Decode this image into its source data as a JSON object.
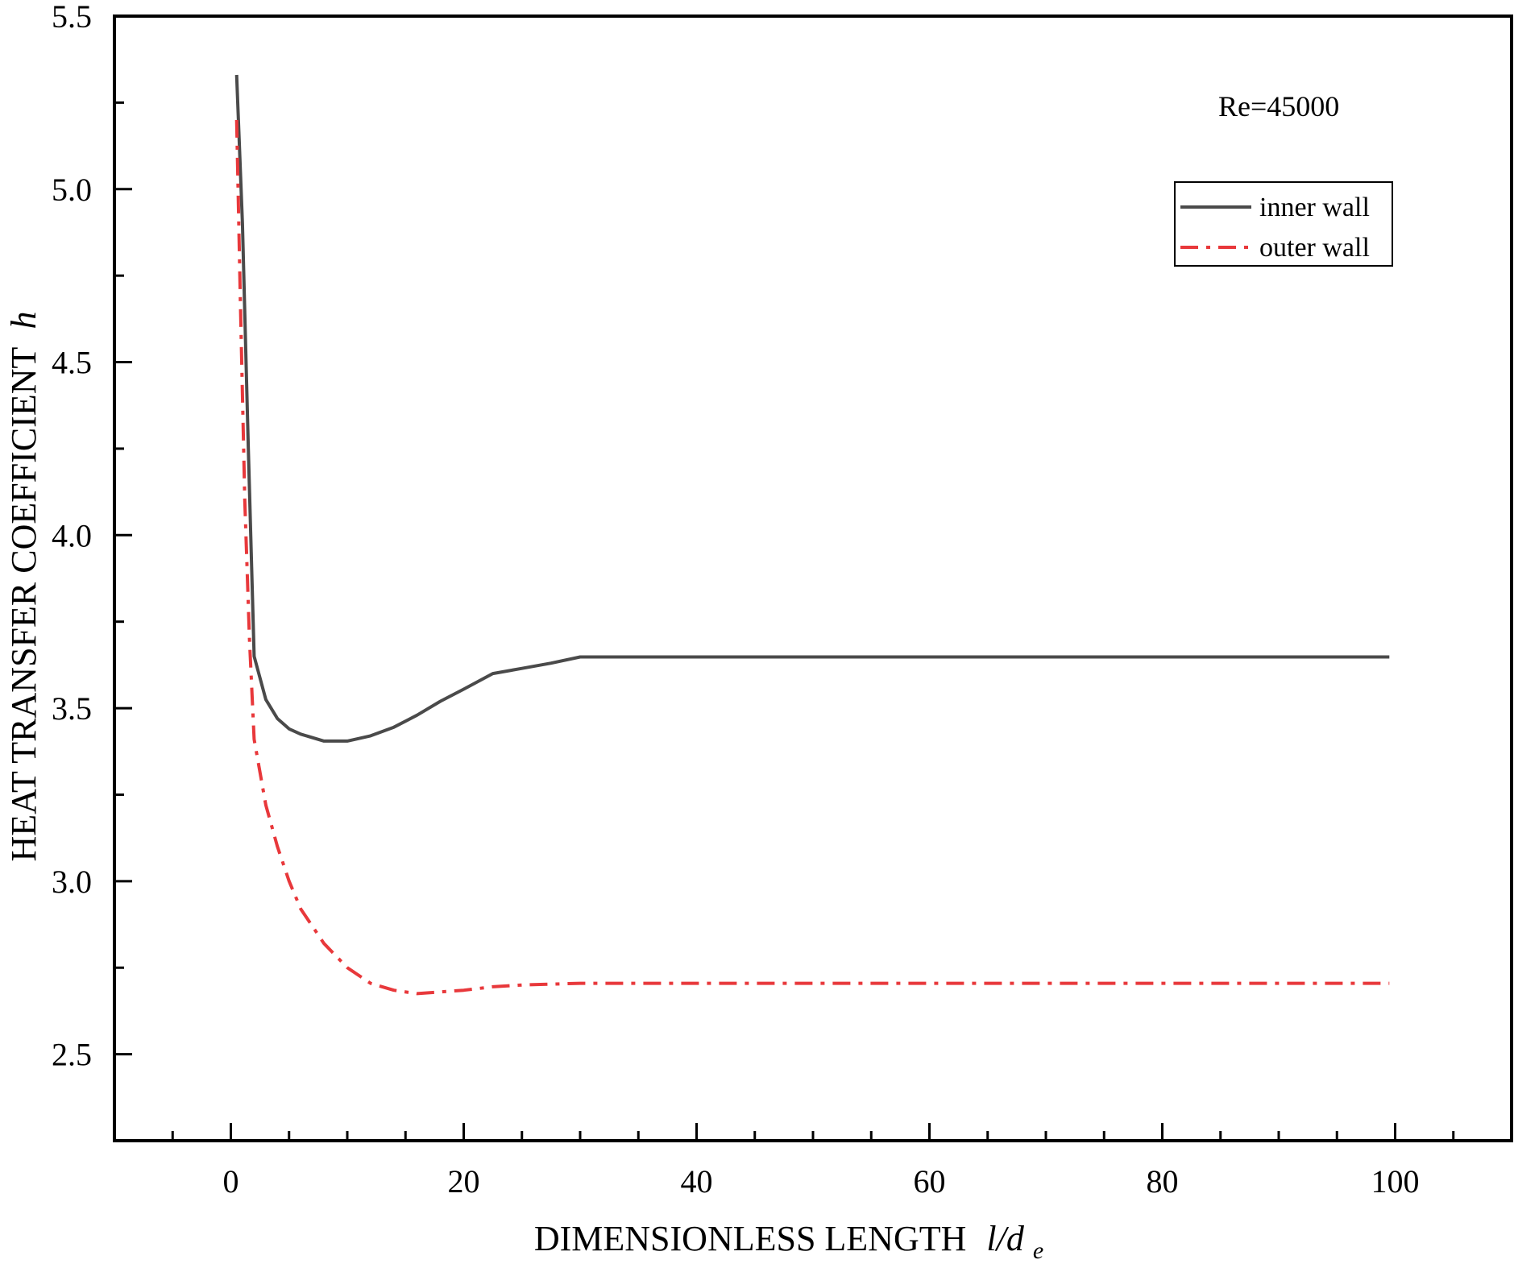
{
  "chart_data": {
    "type": "line",
    "xlabel": "DIMENSIONLESS LENGTH",
    "xlabel_var": "l/d",
    "xlabel_sub": "e",
    "ylabel": "HEAT TRANSFER COEFFICIENT",
    "ylabel_var": "h",
    "xlim": [
      -10,
      110
    ],
    "ylim": [
      2.25,
      5.5
    ],
    "xticks": [
      0,
      20,
      40,
      60,
      80,
      100
    ],
    "xtick_labels": [
      "0",
      "20",
      "40",
      "60",
      "80",
      "100"
    ],
    "xminor": [
      -5,
      5,
      10,
      15,
      25,
      30,
      35,
      45,
      50,
      55,
      65,
      70,
      75,
      85,
      90,
      95,
      105
    ],
    "yticks": [
      2.5,
      3.0,
      3.5,
      4.0,
      4.5,
      5.0,
      5.5
    ],
    "ytick_labels": [
      "2.5",
      "3.0",
      "3.5",
      "4.0",
      "4.5",
      "5.0",
      "5.5"
    ],
    "yminor": [
      2.75,
      3.25,
      3.75,
      4.25,
      4.75,
      5.25
    ],
    "annotation": "Re=45000",
    "legend": {
      "position": "top-right"
    },
    "series": [
      {
        "name": "inner wall",
        "color": "#4a4a4a",
        "style": "solid",
        "x": [
          0.5,
          1.0,
          1.5,
          2.0,
          3.0,
          4.0,
          5.0,
          6.0,
          8.0,
          10.0,
          12.0,
          14.0,
          16.0,
          18.0,
          20.0,
          22.5,
          25.0,
          27.5,
          30.0,
          40.0,
          50.0,
          60.0,
          70.0,
          80.0,
          90.0,
          99.5
        ],
        "y": [
          5.33,
          4.9,
          4.25,
          3.65,
          3.525,
          3.47,
          3.44,
          3.425,
          3.405,
          3.405,
          3.42,
          3.445,
          3.48,
          3.52,
          3.555,
          3.6,
          3.615,
          3.63,
          3.648,
          3.648,
          3.648,
          3.648,
          3.648,
          3.648,
          3.648,
          3.648
        ]
      },
      {
        "name": "outer wall",
        "color": "#e8383b",
        "style": "dash-dot",
        "x": [
          0.5,
          0.8,
          1.2,
          1.6,
          2.0,
          3.0,
          4.0,
          5.0,
          6.0,
          8.0,
          10.0,
          12.0,
          14.0,
          16.0,
          18.0,
          20.0,
          22.5,
          25.0,
          30.0,
          40.0,
          50.0,
          60.0,
          70.0,
          80.0,
          90.0,
          99.5
        ],
        "y": [
          5.2,
          4.7,
          4.1,
          3.7,
          3.41,
          3.22,
          3.1,
          3.0,
          2.92,
          2.82,
          2.75,
          2.705,
          2.685,
          2.675,
          2.68,
          2.685,
          2.695,
          2.7,
          2.705,
          2.705,
          2.705,
          2.705,
          2.705,
          2.705,
          2.705,
          2.705
        ]
      }
    ]
  }
}
